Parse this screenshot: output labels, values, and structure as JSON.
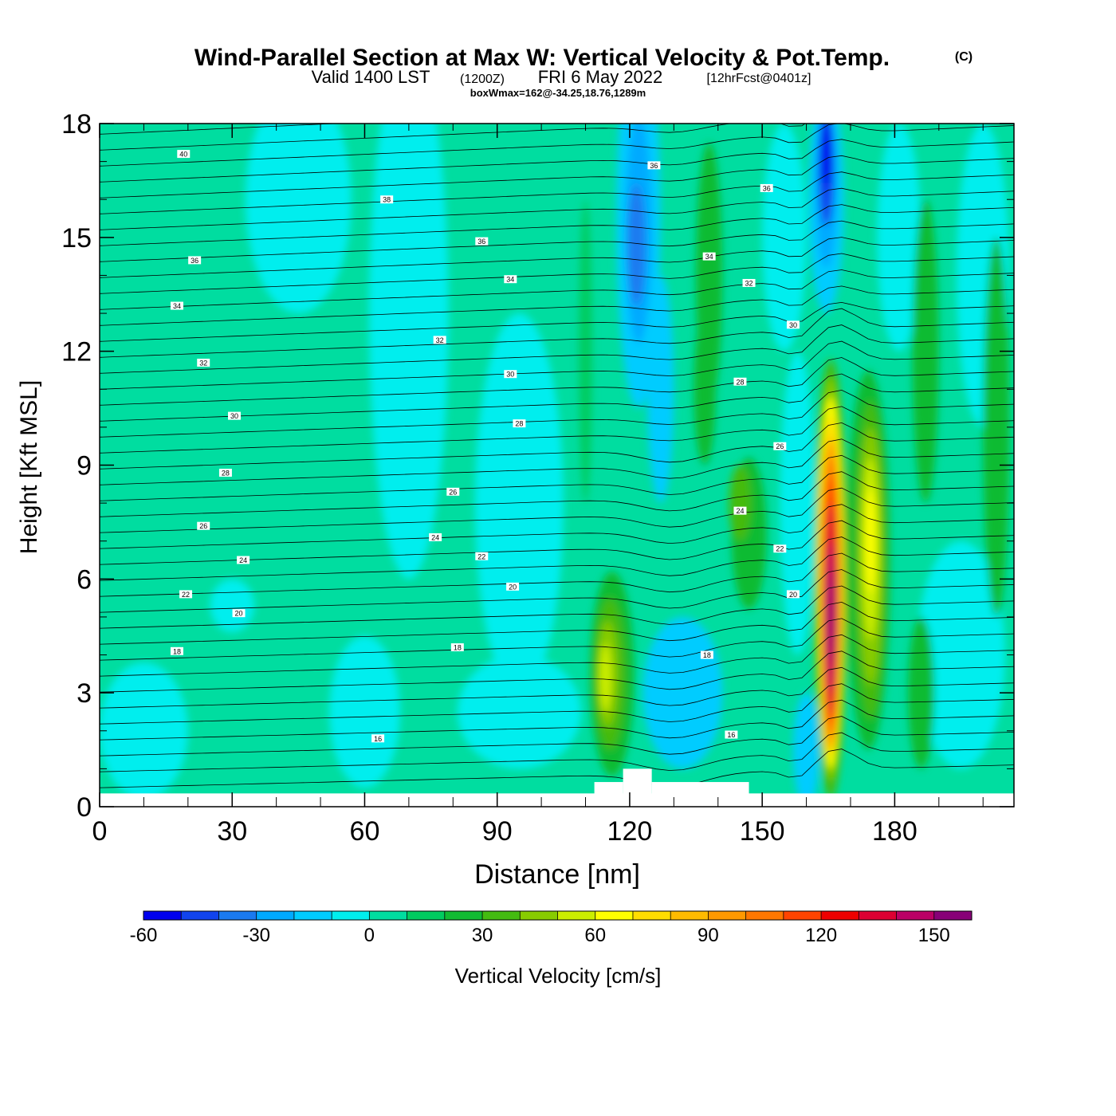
{
  "header": {
    "title_main": "Wind-Parallel Section at Max W: Vertical Velocity & Pot.Temp.",
    "copyright": "(C)",
    "valid_label": "Valid 1400 LST",
    "utc_label": "(1200Z)",
    "date_label": "FRI 6 May 2022",
    "fcst_label": "[12hrFcst@0401z]",
    "box_wmax": "boxWmax=162@-34.25,18.76,1289m"
  },
  "chart_data": {
    "type": "heatmap",
    "title": "Wind-Parallel Section at Max W: Vertical Velocity & Pot.Temp.",
    "xlabel": "Distance [nm]",
    "ylabel": "Height [Kft MSL]",
    "xlim": [
      0,
      207
    ],
    "ylim": [
      0,
      18
    ],
    "xticks": [
      0,
      30,
      60,
      90,
      120,
      150,
      180
    ],
    "xtick_labels": [
      "0",
      "30",
      "60",
      "90",
      "120",
      "150",
      "180"
    ],
    "yticks": [
      0,
      3,
      6,
      9,
      12,
      15,
      18
    ],
    "ytick_labels": [
      "0",
      "3",
      "6",
      "9",
      "12",
      "15",
      "18"
    ],
    "ground_level_kft": 0.35,
    "terrain": [
      {
        "x0": 112,
        "x1": 118.5,
        "top": 0.65
      },
      {
        "x0": 118.5,
        "x1": 125,
        "top": 1.0
      },
      {
        "x0": 125,
        "x1": 147,
        "top": 0.65
      }
    ],
    "colorbar": {
      "label": "Vertical Velocity [cm/s]",
      "levels": [
        -60,
        -50,
        -40,
        -30,
        -20,
        -10,
        0,
        10,
        20,
        30,
        40,
        50,
        60,
        70,
        80,
        90,
        100,
        110,
        120,
        130,
        140,
        150,
        160
      ],
      "colors": [
        "#0000ee",
        "#1144ee",
        "#1a7af0",
        "#00aaff",
        "#00ccff",
        "#00eeee",
        "#00dda0",
        "#00cc60",
        "#11bb33",
        "#44bb11",
        "#88cc00",
        "#ccee00",
        "#ffff00",
        "#ffdd00",
        "#ffbb00",
        "#ff9900",
        "#ff7700",
        "#ff4400",
        "#ee0000",
        "#dd0033",
        "#bb0066",
        "#880077"
      ],
      "tick_values": [
        -60,
        -30,
        0,
        30,
        60,
        90,
        120,
        150
      ],
      "tick_labels": [
        "-60",
        "-30",
        "0",
        "30",
        "60",
        "90",
        "120",
        "150"
      ]
    },
    "w_features_cm_s": [
      {
        "name": "main updraft",
        "x": 165.5,
        "y": 5.0,
        "peak": 162
      },
      {
        "name": "secondary updraft",
        "x": 174.5,
        "y": 6.5,
        "peak": 70
      },
      {
        "name": "lee-wave updraft",
        "x": 115,
        "y": 3.5,
        "peak": 50
      },
      {
        "name": "downdraft aloft",
        "x": 164.5,
        "y": 17.2,
        "peak": -60
      },
      {
        "name": "downdraft",
        "x": 122,
        "y": 15.0,
        "peak": -35
      },
      {
        "name": "downdraft low",
        "x": 127,
        "y": 3.0,
        "peak": -15
      },
      {
        "name": "weak updraft",
        "x": 145,
        "y": 7.5,
        "peak": 30
      },
      {
        "name": "weak updraft",
        "x": 137,
        "y": 14.0,
        "peak": 30
      }
    ],
    "theta_contour_labels": [
      {
        "x": 19,
        "y": 17.2,
        "text": "40"
      },
      {
        "x": 65,
        "y": 16.0,
        "text": "38"
      },
      {
        "x": 125.5,
        "y": 16.9,
        "text": "36"
      },
      {
        "x": 151,
        "y": 16.3,
        "text": "36"
      },
      {
        "x": 86.5,
        "y": 14.9,
        "text": "36"
      },
      {
        "x": 21.5,
        "y": 14.4,
        "text": "36"
      },
      {
        "x": 138,
        "y": 14.5,
        "text": "34"
      },
      {
        "x": 93,
        "y": 13.9,
        "text": "34"
      },
      {
        "x": 17.5,
        "y": 13.2,
        "text": "34"
      },
      {
        "x": 147,
        "y": 13.8,
        "text": "32"
      },
      {
        "x": 77,
        "y": 12.3,
        "text": "32"
      },
      {
        "x": 23.5,
        "y": 11.7,
        "text": "32"
      },
      {
        "x": 157,
        "y": 12.7,
        "text": "30"
      },
      {
        "x": 93,
        "y": 11.4,
        "text": "30"
      },
      {
        "x": 30.5,
        "y": 10.3,
        "text": "30"
      },
      {
        "x": 145,
        "y": 11.2,
        "text": "28"
      },
      {
        "x": 95,
        "y": 10.1,
        "text": "28"
      },
      {
        "x": 28.5,
        "y": 8.8,
        "text": "28"
      },
      {
        "x": 154,
        "y": 9.5,
        "text": "26"
      },
      {
        "x": 80,
        "y": 8.3,
        "text": "26"
      },
      {
        "x": 23.5,
        "y": 7.4,
        "text": "26"
      },
      {
        "x": 145,
        "y": 7.8,
        "text": "24"
      },
      {
        "x": 76,
        "y": 7.1,
        "text": "24"
      },
      {
        "x": 32.5,
        "y": 6.5,
        "text": "24"
      },
      {
        "x": 154,
        "y": 6.8,
        "text": "22"
      },
      {
        "x": 86.5,
        "y": 6.6,
        "text": "22"
      },
      {
        "x": 19.5,
        "y": 5.6,
        "text": "22"
      },
      {
        "x": 157,
        "y": 5.6,
        "text": "20"
      },
      {
        "x": 93.5,
        "y": 5.8,
        "text": "20"
      },
      {
        "x": 31.5,
        "y": 5.1,
        "text": "20"
      },
      {
        "x": 137.5,
        "y": 4.0,
        "text": "18"
      },
      {
        "x": 81,
        "y": 4.2,
        "text": "18"
      },
      {
        "x": 17.5,
        "y": 4.1,
        "text": "18"
      },
      {
        "x": 143,
        "y": 1.9,
        "text": "16"
      },
      {
        "x": 63,
        "y": 1.8,
        "text": "16"
      }
    ]
  }
}
